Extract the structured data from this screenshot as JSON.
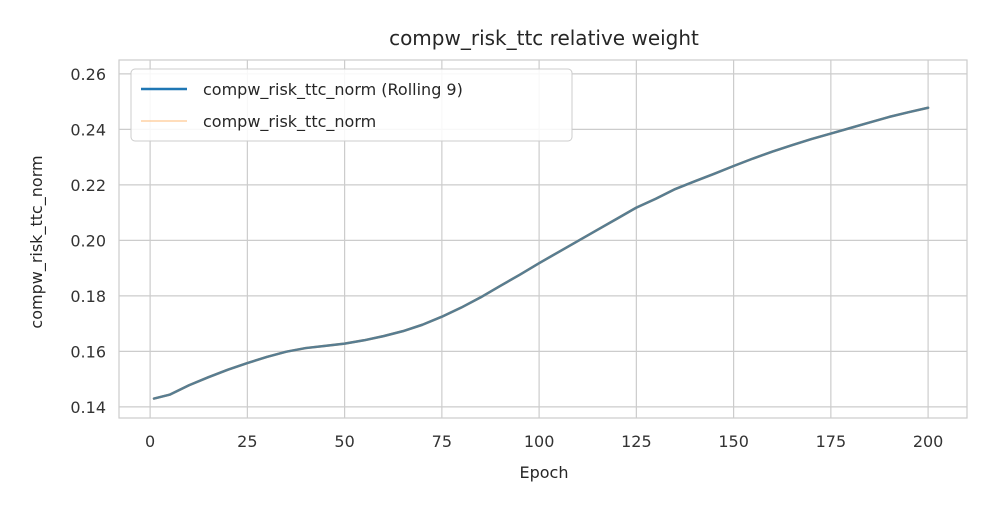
{
  "chart_data": {
    "type": "line",
    "title": "compw_risk_ttc relative weight",
    "xlabel": "Epoch",
    "ylabel": "compw_risk_ttc_norm",
    "xlim": [
      -8,
      210
    ],
    "ylim": [
      0.136,
      0.265
    ],
    "xticks": [
      "0",
      "25",
      "50",
      "75",
      "100",
      "125",
      "150",
      "175",
      "200"
    ],
    "xtick_values": [
      0,
      25,
      50,
      75,
      100,
      125,
      150,
      175,
      200
    ],
    "yticks": [
      "0.14",
      "0.16",
      "0.18",
      "0.20",
      "0.22",
      "0.24",
      "0.26"
    ],
    "ytick_values": [
      0.14,
      0.16,
      0.18,
      0.2,
      0.22,
      0.24,
      0.26
    ],
    "grid": true,
    "legend_position": "top-left",
    "series": [
      {
        "name": "compw_risk_ttc_norm (Rolling 9)",
        "color": "#1f77b4",
        "x": [
          1,
          5,
          10,
          15,
          20,
          25,
          30,
          35,
          40,
          45,
          50,
          55,
          60,
          65,
          70,
          75,
          80,
          85,
          90,
          95,
          100,
          105,
          110,
          115,
          120,
          125,
          130,
          135,
          140,
          145,
          150,
          155,
          160,
          165,
          170,
          175,
          180,
          185,
          190,
          195,
          200
        ],
        "y": [
          0.143,
          0.1444,
          0.1478,
          0.1507,
          0.1534,
          0.1558,
          0.158,
          0.1599,
          0.1612,
          0.162,
          0.1628,
          0.164,
          0.1655,
          0.1673,
          0.1696,
          0.1725,
          0.1758,
          0.1795,
          0.1836,
          0.1876,
          0.1918,
          0.1958,
          0.1998,
          0.2038,
          0.2078,
          0.2118,
          0.215,
          0.2185,
          0.2213,
          0.224,
          0.2268,
          0.2295,
          0.232,
          0.2343,
          0.2365,
          0.2385,
          0.2405,
          0.2425,
          0.2445,
          0.2462,
          0.2478
        ]
      },
      {
        "name": "compw_risk_ttc_norm",
        "color": "#ffbb78",
        "x": [
          1,
          5,
          10,
          15,
          20,
          25,
          30,
          35,
          40,
          45,
          50,
          55,
          60,
          65,
          70,
          75,
          80,
          85,
          90,
          95,
          100,
          105,
          110,
          115,
          120,
          125,
          130,
          135,
          140,
          145,
          150,
          155,
          160,
          165,
          170,
          175,
          180,
          185,
          190,
          195,
          200
        ],
        "y": [
          0.143,
          0.1444,
          0.1478,
          0.1507,
          0.1534,
          0.1558,
          0.158,
          0.1599,
          0.1612,
          0.162,
          0.1628,
          0.164,
          0.1655,
          0.1673,
          0.1696,
          0.1725,
          0.1758,
          0.1795,
          0.1836,
          0.1876,
          0.1918,
          0.1958,
          0.1998,
          0.2038,
          0.2078,
          0.2118,
          0.215,
          0.2185,
          0.2213,
          0.224,
          0.2268,
          0.2295,
          0.232,
          0.2343,
          0.2365,
          0.2385,
          0.2405,
          0.2425,
          0.2445,
          0.2462,
          0.2478
        ]
      }
    ],
    "drawn_series_color": "#587d91"
  }
}
